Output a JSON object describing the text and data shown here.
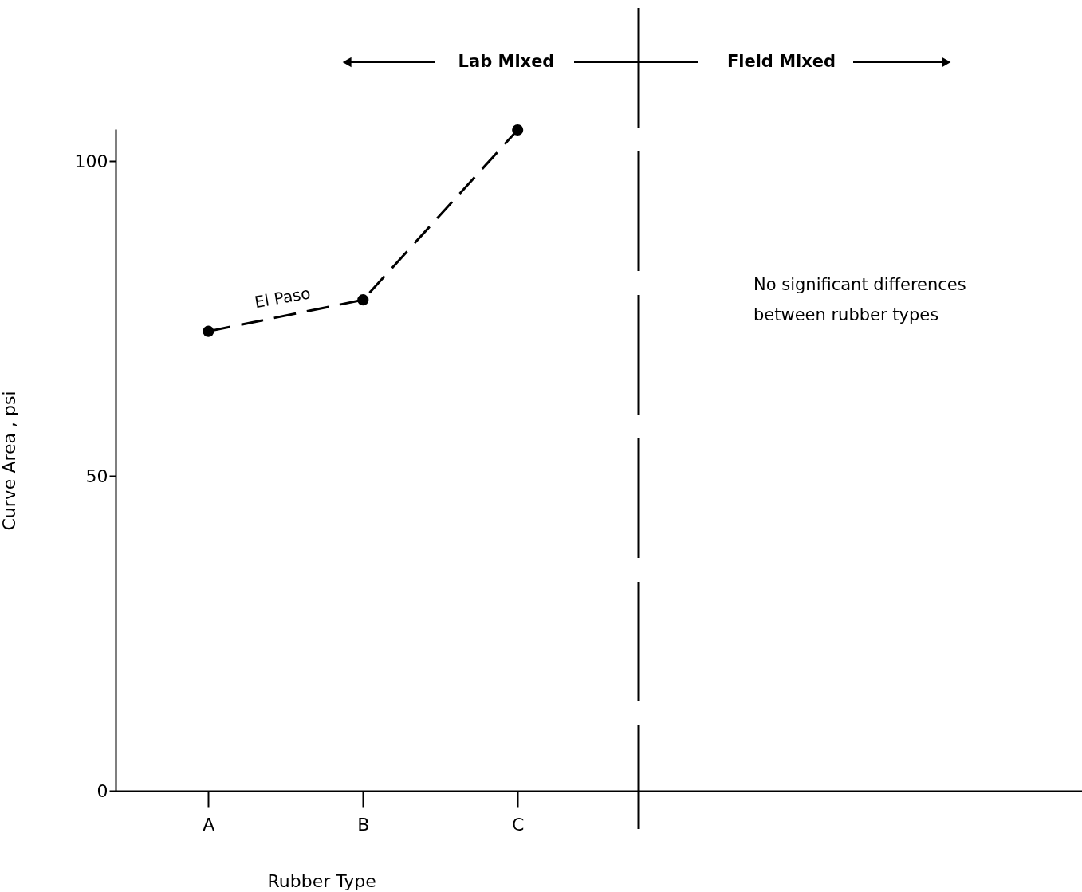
{
  "chart_data": {
    "type": "line",
    "xlabel": "Rubber Type",
    "ylabel": "Curve Area , psi",
    "categories": [
      "A",
      "B",
      "C",
      null,
      null,
      null
    ],
    "series": [
      {
        "name": "El Paso",
        "color": "#000000",
        "values": [
          73,
          78,
          105,
          null,
          null,
          null
        ]
      }
    ],
    "ylim": [
      0,
      105
    ],
    "yticks": [
      0,
      50,
      100
    ],
    "grid": false,
    "marker": "circle",
    "line_style": "dashed",
    "annotations": [
      "Lab Mixed",
      "Field Mixed",
      "No significant differences\nbetween rubber types"
    ]
  }
}
